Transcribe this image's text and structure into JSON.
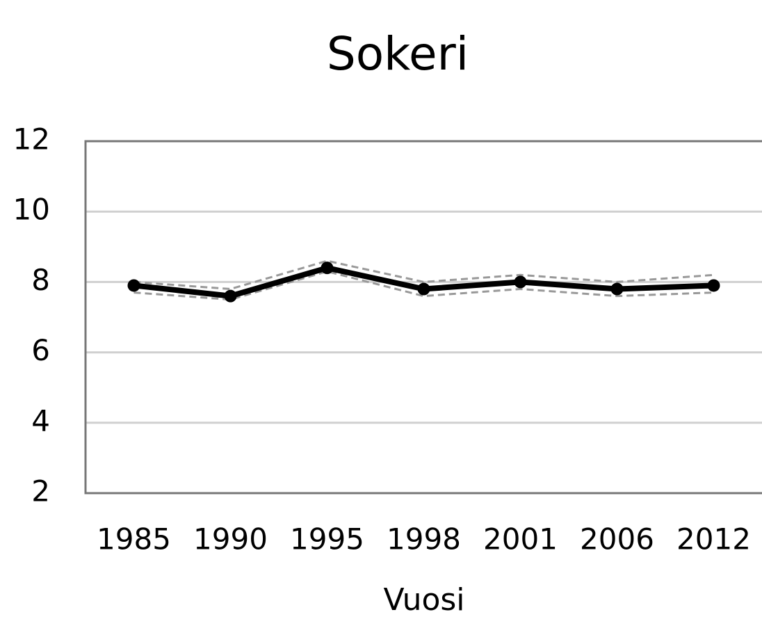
{
  "chart_data": {
    "type": "line",
    "title": "Sokeri",
    "x_label": "Vuosi",
    "categories": [
      "1985",
      "1990",
      "1995",
      "1998",
      "2001",
      "2006",
      "2012"
    ],
    "series": [
      {
        "color": "#999999",
        "dashed": true,
        "markers": false,
        "values": [
          8.0,
          7.8,
          8.6,
          8.0,
          8.2,
          8.0,
          8.2
        ]
      },
      {
        "color": "#999999",
        "dashed": true,
        "markers": false,
        "values": [
          7.7,
          7.5,
          8.3,
          7.6,
          7.8,
          7.6,
          7.7
        ]
      },
      {
        "color": "#000000",
        "dashed": false,
        "markers": true,
        "values": [
          7.9,
          7.6,
          8.4,
          7.8,
          8.0,
          7.8,
          7.9
        ]
      }
    ],
    "ylim": [
      2,
      12
    ],
    "yticks": [
      2,
      4,
      6,
      8,
      10,
      12
    ],
    "grid": true
  }
}
